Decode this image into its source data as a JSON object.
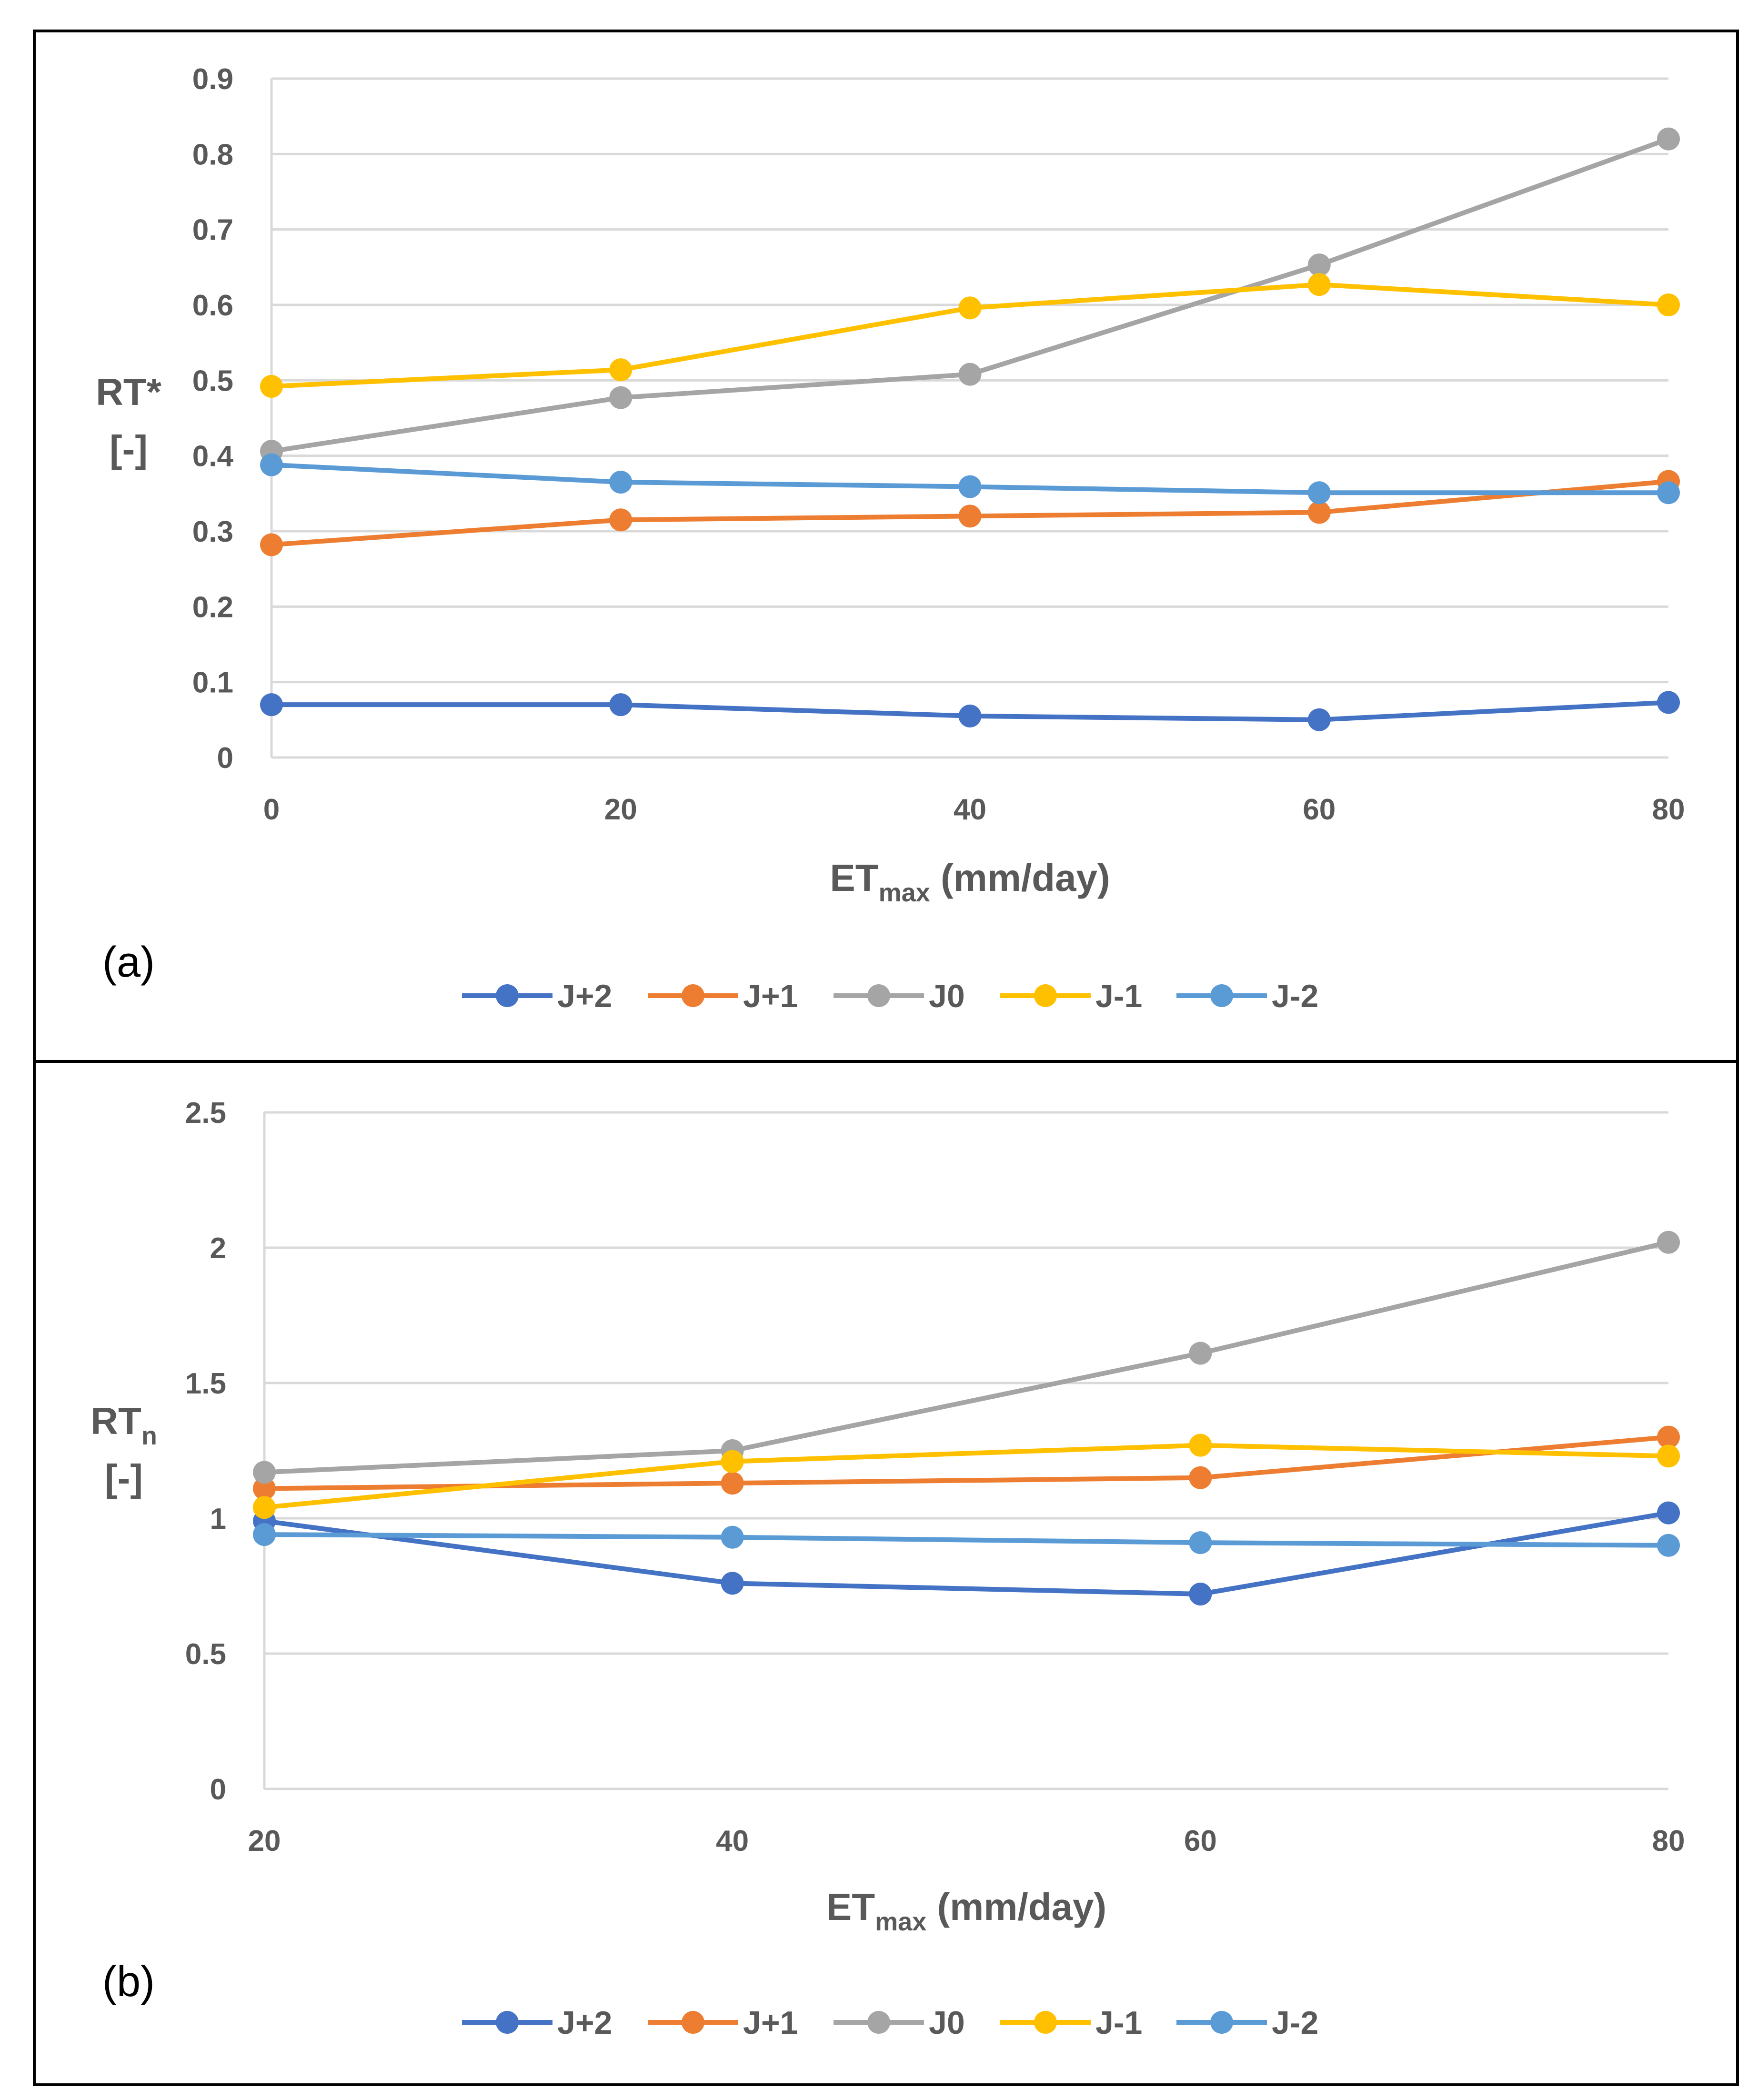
{
  "chart_data": [
    {
      "type": "line",
      "panel_label": "(a)",
      "ylabel": {
        "main": "RT*",
        "sub": "",
        "unit": "[-]"
      },
      "xlabel": {
        "main": "ET",
        "sub": "max",
        "rest": " (mm/day)"
      },
      "x": [
        0,
        20,
        40,
        60,
        80
      ],
      "xlim": [
        0,
        80
      ],
      "ylim": [
        0,
        0.9
      ],
      "xticks": [
        "0",
        "20",
        "40",
        "60",
        "80"
      ],
      "yticks": [
        "0",
        "0.1",
        "0.2",
        "0.3",
        "0.4",
        "0.5",
        "0.6",
        "0.7",
        "0.8",
        "0.9"
      ],
      "ytick_values": [
        0,
        0.1,
        0.2,
        0.3,
        0.4,
        0.5,
        0.6,
        0.7,
        0.8,
        0.9
      ],
      "grid": true,
      "legend_position": "bottom",
      "series": [
        {
          "name": "J+2",
          "color": "#4472C4",
          "values": [
            0.07,
            0.07,
            0.055,
            0.05,
            0.073
          ]
        },
        {
          "name": "J+1",
          "color": "#ED7D31",
          "values": [
            0.282,
            0.315,
            0.32,
            0.325,
            0.366
          ]
        },
        {
          "name": "J0",
          "color": "#A5A5A5",
          "values": [
            0.406,
            0.477,
            0.508,
            0.653,
            0.82
          ]
        },
        {
          "name": "J-1",
          "color": "#FFC000",
          "values": [
            0.492,
            0.514,
            0.596,
            0.627,
            0.6
          ]
        },
        {
          "name": "J-2",
          "color": "#5B9BD5",
          "values": [
            0.388,
            0.365,
            0.359,
            0.351,
            0.351
          ]
        }
      ]
    },
    {
      "type": "line",
      "panel_label": "(b)",
      "ylabel": {
        "main": "RT",
        "sub": "n",
        "unit": "[-]"
      },
      "xlabel": {
        "main": "ET",
        "sub": "max",
        "rest": " (mm/day)"
      },
      "x": [
        20,
        40,
        60,
        80
      ],
      "xlim": [
        20,
        80
      ],
      "ylim": [
        0,
        2.5
      ],
      "xticks": [
        "20",
        "40",
        "60",
        "80"
      ],
      "yticks": [
        "0",
        "0.5",
        "1",
        "1.5",
        "2",
        "2.5"
      ],
      "ytick_values": [
        0,
        0.5,
        1,
        1.5,
        2,
        2.5
      ],
      "grid": true,
      "legend_position": "bottom",
      "series": [
        {
          "name": "J+2",
          "color": "#4472C4",
          "values": [
            0.99,
            0.76,
            0.72,
            1.02
          ]
        },
        {
          "name": "J+1",
          "color": "#ED7D31",
          "values": [
            1.11,
            1.13,
            1.15,
            1.3
          ]
        },
        {
          "name": "J0",
          "color": "#A5A5A5",
          "values": [
            1.17,
            1.25,
            1.61,
            2.02
          ]
        },
        {
          "name": "J-1",
          "color": "#FFC000",
          "values": [
            1.04,
            1.21,
            1.27,
            1.23
          ]
        },
        {
          "name": "J-2",
          "color": "#5B9BD5",
          "values": [
            0.94,
            0.93,
            0.91,
            0.9
          ]
        }
      ]
    }
  ]
}
